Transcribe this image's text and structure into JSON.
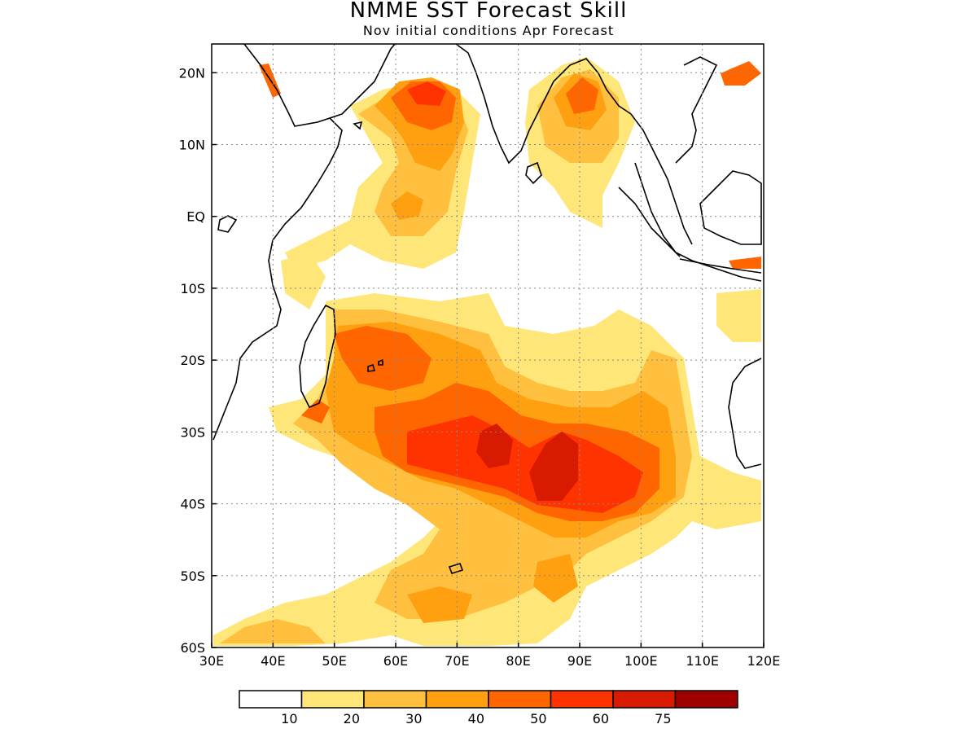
{
  "title": "NMME SST Forecast Skill",
  "subtitle": "Nov initial conditions  Apr Forecast",
  "map": {
    "lon_range": [
      30,
      120
    ],
    "lat_range": [
      -60,
      24
    ],
    "x_ticks": [
      "30E",
      "40E",
      "50E",
      "60E",
      "70E",
      "80E",
      "90E",
      "100E",
      "110E",
      "120E"
    ],
    "y_ticks": [
      {
        "lat": 20,
        "label": "20N"
      },
      {
        "lat": 10,
        "label": "10N"
      },
      {
        "lat": 0,
        "label": "EQ"
      },
      {
        "lat": -10,
        "label": "10S"
      },
      {
        "lat": -20,
        "label": "20S"
      },
      {
        "lat": -30,
        "label": "30S"
      },
      {
        "lat": -40,
        "label": "40S"
      },
      {
        "lat": -50,
        "label": "50S"
      },
      {
        "lat": -60,
        "label": "60S"
      }
    ],
    "grid": "dotted"
  },
  "colorbar": {
    "colors": [
      "#ffffff",
      "#ffe678",
      "#ffc040",
      "#ffa010",
      "#ff6600",
      "#ff3300",
      "#d81a00",
      "#a00000"
    ],
    "labels": [
      "10",
      "20",
      "30",
      "40",
      "50",
      "60",
      "75"
    ]
  }
}
